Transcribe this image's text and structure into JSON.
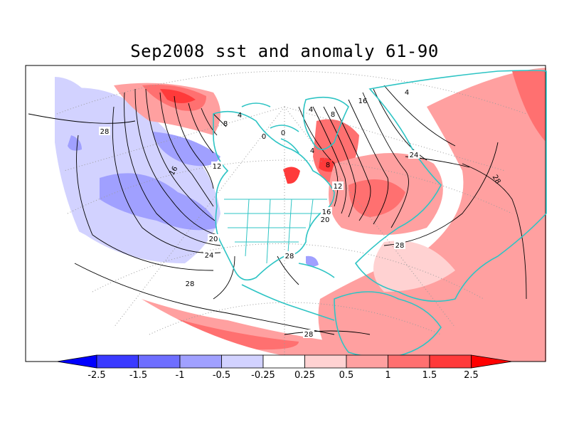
{
  "title": "Sep2008 sst and anomaly 61-90",
  "colorbar": {
    "labels": [
      "-2.5",
      "-1.5",
      "-1",
      "-0.5",
      "-0.25",
      "0.25",
      "0.5",
      "1",
      "1.5",
      "2.5"
    ],
    "colors": [
      "#0000ff",
      "#3a3aff",
      "#6e6eff",
      "#a0a0ff",
      "#d2d2ff",
      "#ffffff",
      "#ffd2d2",
      "#ffa0a0",
      "#ff7070",
      "#ff3a3a",
      "#ff0000"
    ]
  },
  "contour_labels": [
    {
      "id": "c1",
      "text": "28"
    },
    {
      "id": "c2",
      "text": "16"
    },
    {
      "id": "c3",
      "text": "12"
    },
    {
      "id": "c4",
      "text": "8"
    },
    {
      "id": "c5",
      "text": "4"
    },
    {
      "id": "c6",
      "text": "0"
    },
    {
      "id": "c7",
      "text": "0"
    },
    {
      "id": "c8",
      "text": "4"
    },
    {
      "id": "c9",
      "text": "8"
    },
    {
      "id": "c10",
      "text": "4"
    },
    {
      "id": "c11",
      "text": "16"
    },
    {
      "id": "c12",
      "text": "4"
    },
    {
      "id": "c13",
      "text": "24"
    },
    {
      "id": "c14",
      "text": "28"
    },
    {
      "id": "c15",
      "text": "12"
    },
    {
      "id": "c16",
      "text": "16"
    },
    {
      "id": "c17",
      "text": "20"
    },
    {
      "id": "c18",
      "text": "8"
    },
    {
      "id": "c19",
      "text": "20"
    },
    {
      "id": "c20",
      "text": "24"
    },
    {
      "id": "c21",
      "text": "28"
    },
    {
      "id": "c22",
      "text": "28"
    },
    {
      "id": "c23",
      "text": "28"
    },
    {
      "id": "c24",
      "text": "28"
    }
  ],
  "map_colors": {
    "land_outline": "#2ec4c4",
    "contour": "#000000",
    "grid": "#9a9a9a"
  }
}
